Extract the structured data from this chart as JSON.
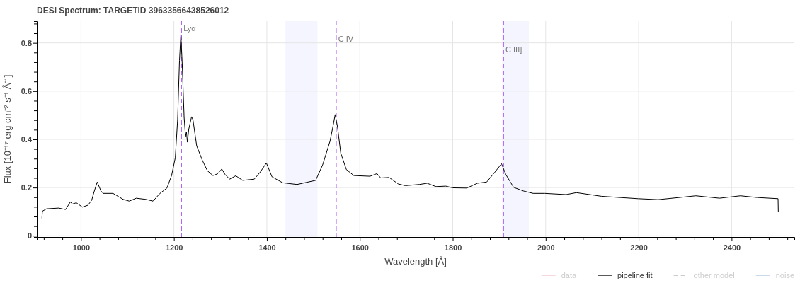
{
  "chart_data": {
    "type": "line",
    "title": "DESI Spectrum: TARGETID 39633566438526012",
    "xlabel": "Wavelength [Å]",
    "ylabel": "Flux [10⁻¹⁷ erg cm⁻² s⁻¹ Å⁻¹]",
    "xlim": [
      905,
      2535
    ],
    "ylim": [
      -0.005,
      0.89
    ],
    "xticks": [
      {
        "value": 920,
        "label": null
      },
      {
        "value": 960,
        "label": null
      },
      1000,
      {
        "value": 1040,
        "label": null
      },
      {
        "value": 1080,
        "label": null
      },
      {
        "value": 1120,
        "label": null
      },
      {
        "value": 1160,
        "label": null
      },
      1200,
      {
        "value": 1240,
        "label": null
      },
      {
        "value": 1280,
        "label": null
      },
      {
        "value": 1320,
        "label": null
      },
      {
        "value": 1360,
        "label": null
      },
      1400,
      {
        "value": 1440,
        "label": null
      },
      {
        "value": 1480,
        "label": null
      },
      {
        "value": 1520,
        "label": null
      },
      {
        "value": 1560,
        "label": null
      },
      1600,
      {
        "value": 1640,
        "label": null
      },
      {
        "value": 1680,
        "label": null
      },
      {
        "value": 1720,
        "label": null
      },
      {
        "value": 1760,
        "label": null
      },
      1800,
      {
        "value": 1840,
        "label": null
      },
      {
        "value": 1880,
        "label": null
      },
      {
        "value": 1920,
        "label": null
      },
      {
        "value": 1960,
        "label": null
      },
      2000,
      {
        "value": 2040,
        "label": null
      },
      {
        "value": 2080,
        "label": null
      },
      {
        "value": 2120,
        "label": null
      },
      {
        "value": 2160,
        "label": null
      },
      2200,
      {
        "value": 2240,
        "label": null
      },
      {
        "value": 2280,
        "label": null
      },
      {
        "value": 2320,
        "label": null
      },
      {
        "value": 2360,
        "label": null
      },
      2400,
      {
        "value": 2440,
        "label": null
      },
      {
        "value": 2480,
        "label": null
      },
      {
        "value": 2520,
        "label": null
      }
    ],
    "yticks": [
      0,
      {
        "value": 0.04,
        "label": null
      },
      {
        "value": 0.08,
        "label": null
      },
      {
        "value": 0.12,
        "label": null
      },
      {
        "value": 0.16,
        "label": null
      },
      0.2,
      {
        "value": 0.24,
        "label": null
      },
      {
        "value": 0.28,
        "label": null
      },
      {
        "value": 0.32,
        "label": null
      },
      {
        "value": 0.36,
        "label": null
      },
      0.4,
      {
        "value": 0.44,
        "label": null
      },
      {
        "value": 0.48,
        "label": null
      },
      {
        "value": 0.52,
        "label": null
      },
      {
        "value": 0.56,
        "label": null
      },
      0.6,
      {
        "value": 0.64,
        "label": null
      },
      {
        "value": 0.68,
        "label": null
      },
      {
        "value": 0.72,
        "label": null
      },
      {
        "value": 0.76,
        "label": null
      },
      0.8,
      {
        "value": 0.84,
        "label": null
      },
      {
        "value": 0.88,
        "label": null
      }
    ],
    "grid": true,
    "legend": "bottom right",
    "bands": [
      {
        "axis": "x",
        "from": 1440,
        "to": 1509,
        "color": "#f5f5ff"
      },
      {
        "axis": "x",
        "from": 1906,
        "to": 1964,
        "color": "#f5f5ff"
      }
    ],
    "ref_lines": [
      {
        "axis": "x",
        "value": 1216,
        "label": "Lyα",
        "color": "#a855f7",
        "line_style": "dashed"
      },
      {
        "axis": "x",
        "value": 1549,
        "label": "C IV",
        "color": "#a855f7",
        "line_style": "dashed"
      },
      {
        "axis": "x",
        "value": 1909,
        "label": "C III]",
        "color": "#a855f7",
        "line_style": "dashed"
      }
    ],
    "series": [
      {
        "name": "data",
        "color": "#f4c2c8"
      },
      {
        "name": "pipeline fit",
        "color": "#000000",
        "x": [
          916,
          917,
          926,
          952,
          967,
          977,
          982,
          990,
          1003,
          1015,
          1023,
          1028,
          1035,
          1043,
          1048,
          1069,
          1076,
          1091,
          1104,
          1119,
          1140,
          1155,
          1170,
          1185,
          1195,
          1203,
          1208,
          1212,
          1215,
          1218,
          1222,
          1225,
          1227,
          1229,
          1232,
          1238,
          1241,
          1249,
          1261,
          1272,
          1284,
          1294,
          1303,
          1310,
          1320,
          1333,
          1348,
          1373,
          1386,
          1399,
          1411,
          1434,
          1465,
          1505,
          1520,
          1536,
          1543,
          1547,
          1552,
          1559,
          1571,
          1587,
          1622,
          1637,
          1645,
          1663,
          1683,
          1698,
          1728,
          1745,
          1764,
          1785,
          1800,
          1830,
          1853,
          1873,
          1891,
          1905,
          1914,
          1931,
          1952,
          1973,
          1998,
          2044,
          2066,
          2120,
          2199,
          2242,
          2323,
          2374,
          2419,
          2455,
          2500,
          2500.5
        ],
        "values": [
          0.073,
          0.102,
          0.112,
          0.115,
          0.109,
          0.14,
          0.132,
          0.137,
          0.119,
          0.127,
          0.147,
          0.181,
          0.223,
          0.186,
          0.176,
          0.176,
          0.168,
          0.151,
          0.144,
          0.156,
          0.151,
          0.144,
          0.176,
          0.198,
          0.25,
          0.324,
          0.481,
          0.727,
          0.837,
          0.708,
          0.491,
          0.412,
          0.432,
          0.388,
          0.442,
          0.494,
          0.481,
          0.373,
          0.314,
          0.27,
          0.25,
          0.257,
          0.277,
          0.255,
          0.235,
          0.249,
          0.23,
          0.235,
          0.265,
          0.302,
          0.245,
          0.22,
          0.213,
          0.23,
          0.294,
          0.393,
          0.461,
          0.503,
          0.452,
          0.343,
          0.275,
          0.25,
          0.247,
          0.258,
          0.24,
          0.242,
          0.215,
          0.208,
          0.213,
          0.218,
          0.204,
          0.206,
          0.199,
          0.198,
          0.218,
          0.223,
          0.265,
          0.299,
          0.255,
          0.201,
          0.186,
          0.176,
          0.176,
          0.171,
          0.179,
          0.164,
          0.154,
          0.15,
          0.166,
          0.156,
          0.166,
          0.159,
          0.154,
          0.099
        ]
      },
      {
        "name": "other model",
        "color": "#bbbbbb",
        "line_style": "dashed"
      },
      {
        "name": "noise",
        "color": "#b0c4de"
      }
    ]
  }
}
